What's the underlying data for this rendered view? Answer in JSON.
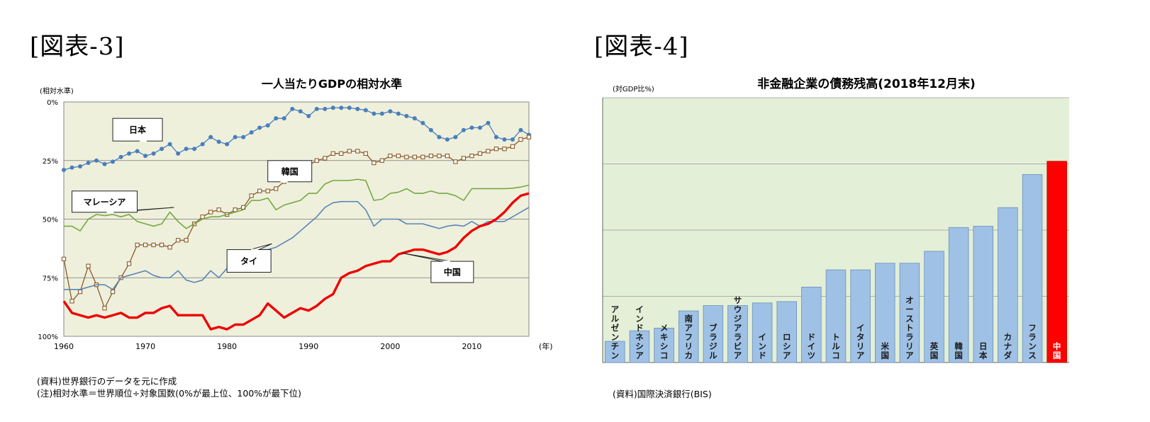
{
  "labels": {
    "fig3": "[図表-3]",
    "fig4": "[図表-4]"
  },
  "chart_data": [
    {
      "type": "line",
      "title": "一人当たりGDPの相対水準",
      "ylabel": "(相対水準)",
      "xlabel": "(年)",
      "y_inverted": true,
      "ylim": [
        0,
        100
      ],
      "xlim": [
        1960,
        2017
      ],
      "yticks": [
        "0%",
        "25%",
        "50%",
        "75%",
        "100%"
      ],
      "yticks_values": [
        0,
        25,
        50,
        75,
        100
      ],
      "xticks": [
        1960,
        1970,
        1980,
        1990,
        2000,
        2010
      ],
      "grid": true,
      "source_note": "(資料)世界銀行のデータを元に作成",
      "def_note": "(注)相対水準＝世界順位÷対象国数(0%が最上位、100%が最下位)",
      "series": [
        {
          "name": "日本",
          "color": "#4a7ebb",
          "marker": "dot",
          "x_start": 1960,
          "values": [
            29,
            28,
            27.5,
            26,
            25,
            26.5,
            25.5,
            23.5,
            22,
            21,
            23,
            22,
            20,
            18,
            22,
            20,
            20,
            18,
            15,
            17,
            18,
            15,
            15,
            13,
            11,
            10,
            7,
            7,
            3,
            4,
            6,
            3,
            3,
            2.5,
            2.5,
            2.5,
            3,
            3.5,
            5,
            5,
            4,
            5,
            6,
            7,
            9,
            12,
            15,
            16,
            15,
            12,
            11,
            11,
            9,
            15,
            16,
            16,
            12,
            14
          ],
          "label_pos": [
            1966,
            7
          ]
        },
        {
          "name": "韓国",
          "color": "#8b5a2b",
          "marker": "square",
          "x_start": 1960,
          "values": [
            67,
            85,
            81,
            70,
            78,
            88,
            81,
            75,
            69,
            61,
            61,
            61,
            61,
            62,
            59,
            59,
            52,
            49,
            47,
            46,
            48,
            46,
            45,
            40,
            38,
            38,
            37,
            34,
            31,
            29,
            27,
            25,
            24,
            22,
            22,
            21,
            21,
            22,
            26,
            25,
            23,
            23,
            23.5,
            23.5,
            23.5,
            23,
            23,
            23,
            25.5,
            24,
            23,
            22,
            21,
            20,
            20,
            19,
            16,
            15
          ],
          "label_pos": [
            1985,
            25
          ]
        },
        {
          "name": "マレーシア",
          "color": "#77a843",
          "marker": "none",
          "x_start": 1960,
          "values": [
            53,
            53,
            55,
            50,
            48,
            48.5,
            48,
            49,
            48,
            51,
            52,
            53,
            52,
            47,
            51,
            54,
            52,
            50,
            49,
            49,
            48,
            47,
            46,
            42,
            42,
            41,
            46,
            44,
            43,
            42,
            39,
            39,
            35,
            33.5,
            33.5,
            33.5,
            33,
            33.5,
            42,
            41.5,
            39,
            38.5,
            37,
            39,
            39,
            38,
            39,
            39,
            40,
            42,
            37,
            37,
            37,
            37,
            37,
            36.8,
            36.3,
            35.5
          ],
          "label_pos": [
            1961,
            38
          ]
        },
        {
          "name": "タイ",
          "color": "#5b86b6",
          "marker": "none",
          "x_start": 1960,
          "values": [
            80,
            80,
            80,
            79,
            78,
            78,
            80,
            75,
            74,
            73,
            72,
            74,
            75,
            75,
            72,
            76,
            77,
            76,
            72,
            75,
            71,
            71,
            68,
            65,
            63,
            63,
            62,
            60,
            58,
            55,
            52,
            49,
            45,
            43,
            42.5,
            42.5,
            42.5,
            46,
            53,
            50,
            50,
            50,
            52,
            52,
            52,
            53,
            54,
            53,
            52.5,
            53,
            51,
            53,
            51,
            51,
            51,
            49,
            47,
            45
          ],
          "label_pos": [
            1980,
            63
          ]
        },
        {
          "name": "中国",
          "color": "#ee0000",
          "marker": "none",
          "x_start": 1960,
          "values": [
            85,
            90,
            91,
            92,
            91,
            92,
            91,
            90,
            92,
            92,
            90,
            90,
            88,
            87,
            91,
            91,
            91,
            91,
            97,
            96,
            97,
            95,
            95,
            93,
            91,
            86,
            89,
            92,
            90,
            88,
            89,
            87,
            84,
            82,
            75,
            73,
            72,
            70,
            69,
            68,
            68,
            65,
            64,
            63,
            63,
            64,
            65,
            64,
            62,
            58,
            55,
            53,
            52,
            50,
            47,
            43,
            40,
            39
          ],
          "label_pos": [
            2005,
            68
          ]
        }
      ]
    },
    {
      "type": "bar",
      "title": "非金融企業の債務残高(2018年12月末)",
      "ylabel": "(対GDP比%)",
      "ylim": [
        0,
        200
      ],
      "yticks": [
        0,
        50,
        100,
        150,
        200
      ],
      "grid": true,
      "source_note": "(資料)国際決済銀行(BIS)",
      "bar_color": "#9fc1e5",
      "highlight_color": "#ff0000",
      "highlight_index": 18,
      "categories": [
        "アルゼンチン",
        "インドネシア",
        "メキシコ",
        "南アフリカ",
        "ブラジル",
        "サウジアラビア",
        "インド",
        "ロシア",
        "ドイツ",
        "トルコ",
        "イタリア",
        "米国",
        "オーストラリア",
        "英国",
        "韓国",
        "日本",
        "カナダ",
        "フランス",
        "中国"
      ],
      "values": [
        16,
        24,
        26,
        39,
        43,
        43,
        45,
        46,
        57,
        70,
        70,
        75,
        75,
        84,
        102,
        103,
        117,
        142,
        152
      ]
    }
  ]
}
